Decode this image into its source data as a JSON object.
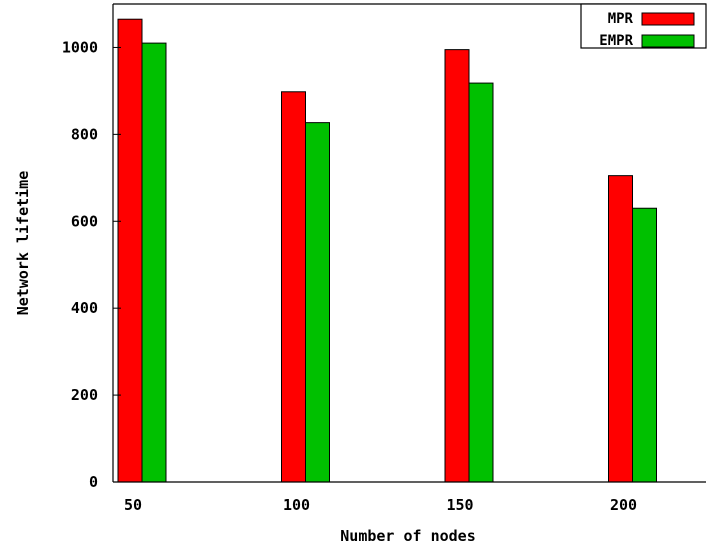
{
  "chart_data": {
    "type": "bar",
    "categories": [
      "50",
      "100",
      "150",
      "200"
    ],
    "series": [
      {
        "name": "MPR",
        "values": [
          1065,
          898,
          995,
          705
        ],
        "color": "#ff0000"
      },
      {
        "name": "EMPR",
        "values": [
          1010,
          827,
          918,
          630
        ],
        "color": "#00c000"
      }
    ],
    "xlabel": "Number of nodes",
    "ylabel": "Network lifetime",
    "ylim": [
      0,
      1100
    ],
    "yticks": [
      0,
      200,
      400,
      600,
      800,
      1000
    ],
    "y_tick_labels": [
      "0",
      "200",
      "400",
      "600",
      "800",
      "1000"
    ],
    "grid": false,
    "legend_position": "top-right"
  }
}
